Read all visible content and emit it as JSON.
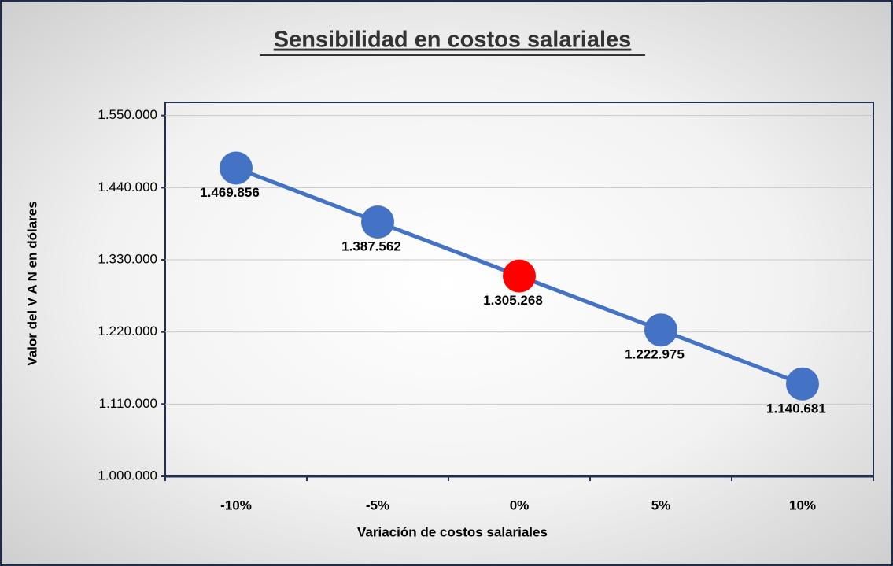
{
  "chart_data": {
    "type": "line",
    "title": "Sensibilidad en costos salariales",
    "x_label": "Variación de costos salariales",
    "y_label": "Valor del V A N en dólares",
    "categories": [
      "-10%",
      "-5%",
      "0%",
      "5%",
      "10%"
    ],
    "series": [
      {
        "name": "VAN",
        "color": "#4472c4",
        "point_colors": [
          "#4472c4",
          "#4472c4",
          "#ff0000",
          "#4472c4",
          "#4472c4"
        ],
        "values": [
          1469856,
          1387562,
          1305268,
          1222975,
          1140681
        ],
        "value_labels": [
          "1.469.856",
          "1.387.562",
          "1.305.268",
          "1.222.975",
          "1.140.681"
        ]
      }
    ],
    "ylim": [
      1000000,
      1570000
    ],
    "yticks": [
      {
        "value": 1000000,
        "label": "1.000.000"
      },
      {
        "value": 1110000,
        "label": "1.110.000"
      },
      {
        "value": 1220000,
        "label": "1.220.000"
      },
      {
        "value": 1330000,
        "label": "1.330.000"
      },
      {
        "value": 1440000,
        "label": "1.440.000"
      },
      {
        "value": 1550000,
        "label": "1.550.000"
      }
    ],
    "grid": true
  }
}
